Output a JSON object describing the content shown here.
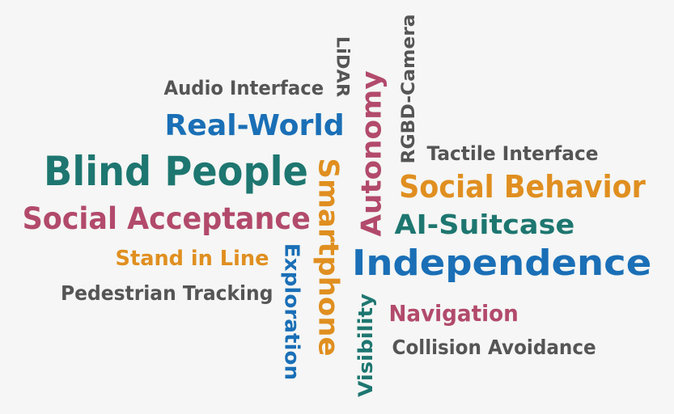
{
  "colors": {
    "teal": "#1e7670",
    "blue": "#1a6fb6",
    "maroon": "#b24a6c",
    "orange": "#e08f20",
    "gray": "#555555",
    "background": "#f5f6f5"
  },
  "words": [
    {
      "text": "Audio Interface",
      "color": "gray",
      "orientation": "horizontal"
    },
    {
      "text": "Real-World",
      "color": "blue",
      "orientation": "horizontal"
    },
    {
      "text": "Blind People",
      "color": "teal",
      "orientation": "horizontal"
    },
    {
      "text": "Social Acceptance",
      "color": "maroon",
      "orientation": "horizontal"
    },
    {
      "text": "Stand in Line",
      "color": "orange",
      "orientation": "horizontal"
    },
    {
      "text": "Pedestrian Tracking",
      "color": "gray",
      "orientation": "horizontal"
    },
    {
      "text": "Exploration",
      "color": "blue",
      "orientation": "vertical-down"
    },
    {
      "text": "Smartphone",
      "color": "orange",
      "orientation": "vertical-down"
    },
    {
      "text": "LiDAR",
      "color": "gray",
      "orientation": "vertical-down"
    },
    {
      "text": "Autonomy",
      "color": "maroon",
      "orientation": "vertical-up"
    },
    {
      "text": "RGBD-Camera",
      "color": "gray",
      "orientation": "vertical-up"
    },
    {
      "text": "Visibility",
      "color": "teal",
      "orientation": "vertical-up"
    },
    {
      "text": "Tactile Interface",
      "color": "gray",
      "orientation": "horizontal"
    },
    {
      "text": "Social Behavior",
      "color": "orange",
      "orientation": "horizontal"
    },
    {
      "text": "AI-Suitcase",
      "color": "teal",
      "orientation": "horizontal"
    },
    {
      "text": "Independence",
      "color": "blue",
      "orientation": "horizontal"
    },
    {
      "text": "Navigation",
      "color": "maroon",
      "orientation": "horizontal"
    },
    {
      "text": "Collision Avoidance",
      "color": "gray",
      "orientation": "horizontal"
    }
  ]
}
